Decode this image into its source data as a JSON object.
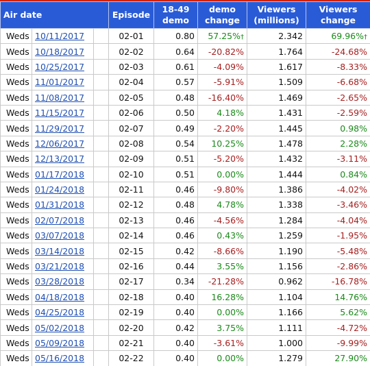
{
  "columns": {
    "air_date": "Air date",
    "episode": "Episode",
    "demo": [
      "18-49",
      "demo"
    ],
    "demo_change": [
      "demo",
      "change"
    ],
    "viewers": [
      "Viewers",
      "(millions)"
    ],
    "viewers_change": [
      "Viewers",
      "change"
    ]
  },
  "colors": {
    "header_bg": "#2a5bd7",
    "positive": "#1a8a1a",
    "negative": "#a81e1e",
    "link": "#1f4fb3",
    "top_bar": "#cc2200"
  },
  "rows": [
    {
      "day": "Weds",
      "date": "10/11/2017",
      "episode": "02-01",
      "demo": "0.80",
      "demo_change": "57.25%",
      "demo_change_mark": "†",
      "viewers": "2.342",
      "viewers_change": "69.96%",
      "viewers_change_mark": "†"
    },
    {
      "day": "Weds",
      "date": "10/18/2017",
      "episode": "02-02",
      "demo": "0.64",
      "demo_change": "-20.82%",
      "demo_change_mark": "",
      "viewers": "1.764",
      "viewers_change": "-24.68%",
      "viewers_change_mark": ""
    },
    {
      "day": "Weds",
      "date": "10/25/2017",
      "episode": "02-03",
      "demo": "0.61",
      "demo_change": "-4.09%",
      "demo_change_mark": "",
      "viewers": "1.617",
      "viewers_change": "-8.33%",
      "viewers_change_mark": ""
    },
    {
      "day": "Weds",
      "date": "11/01/2017",
      "episode": "02-04",
      "demo": "0.57",
      "demo_change": "-5.91%",
      "demo_change_mark": "",
      "viewers": "1.509",
      "viewers_change": "-6.68%",
      "viewers_change_mark": ""
    },
    {
      "day": "Weds",
      "date": "11/08/2017",
      "episode": "02-05",
      "demo": "0.48",
      "demo_change": "-16.40%",
      "demo_change_mark": "",
      "viewers": "1.469",
      "viewers_change": "-2.65%",
      "viewers_change_mark": ""
    },
    {
      "day": "Weds",
      "date": "11/15/2017",
      "episode": "02-06",
      "demo": "0.50",
      "demo_change": "4.18%",
      "demo_change_mark": "",
      "viewers": "1.431",
      "viewers_change": "-2.59%",
      "viewers_change_mark": ""
    },
    {
      "day": "Weds",
      "date": "11/29/2017",
      "episode": "02-07",
      "demo": "0.49",
      "demo_change": "-2.20%",
      "demo_change_mark": "",
      "viewers": "1.445",
      "viewers_change": "0.98%",
      "viewers_change_mark": ""
    },
    {
      "day": "Weds",
      "date": "12/06/2017",
      "episode": "02-08",
      "demo": "0.54",
      "demo_change": "10.25%",
      "demo_change_mark": "",
      "viewers": "1.478",
      "viewers_change": "2.28%",
      "viewers_change_mark": ""
    },
    {
      "day": "Weds",
      "date": "12/13/2017",
      "episode": "02-09",
      "demo": "0.51",
      "demo_change": "-5.20%",
      "demo_change_mark": "",
      "viewers": "1.432",
      "viewers_change": "-3.11%",
      "viewers_change_mark": ""
    },
    {
      "day": "Weds",
      "date": "01/17/2018",
      "episode": "02-10",
      "demo": "0.51",
      "demo_change": "0.00%",
      "demo_change_mark": "",
      "viewers": "1.444",
      "viewers_change": "0.84%",
      "viewers_change_mark": ""
    },
    {
      "day": "Weds",
      "date": "01/24/2018",
      "episode": "02-11",
      "demo": "0.46",
      "demo_change": "-9.80%",
      "demo_change_mark": "",
      "viewers": "1.386",
      "viewers_change": "-4.02%",
      "viewers_change_mark": ""
    },
    {
      "day": "Weds",
      "date": "01/31/2018",
      "episode": "02-12",
      "demo": "0.48",
      "demo_change": "4.78%",
      "demo_change_mark": "",
      "viewers": "1.338",
      "viewers_change": "-3.46%",
      "viewers_change_mark": ""
    },
    {
      "day": "Weds",
      "date": "02/07/2018",
      "episode": "02-13",
      "demo": "0.46",
      "demo_change": "-4.56%",
      "demo_change_mark": "",
      "viewers": "1.284",
      "viewers_change": "-4.04%",
      "viewers_change_mark": ""
    },
    {
      "day": "Weds",
      "date": "03/07/2018",
      "episode": "02-14",
      "demo": "0.46",
      "demo_change": "0.43%",
      "demo_change_mark": "",
      "viewers": "1.259",
      "viewers_change": "-1.95%",
      "viewers_change_mark": ""
    },
    {
      "day": "Weds",
      "date": "03/14/2018",
      "episode": "02-15",
      "demo": "0.42",
      "demo_change": "-8.66%",
      "demo_change_mark": "",
      "viewers": "1.190",
      "viewers_change": "-5.48%",
      "viewers_change_mark": ""
    },
    {
      "day": "Weds",
      "date": "03/21/2018",
      "episode": "02-16",
      "demo": "0.44",
      "demo_change": "3.55%",
      "demo_change_mark": "",
      "viewers": "1.156",
      "viewers_change": "-2.86%",
      "viewers_change_mark": ""
    },
    {
      "day": "Weds",
      "date": "03/28/2018",
      "episode": "02-17",
      "demo": "0.34",
      "demo_change": "-21.28%",
      "demo_change_mark": "",
      "viewers": "0.962",
      "viewers_change": "-16.78%",
      "viewers_change_mark": ""
    },
    {
      "day": "Weds",
      "date": "04/18/2018",
      "episode": "02-18",
      "demo": "0.40",
      "demo_change": "16.28%",
      "demo_change_mark": "",
      "viewers": "1.104",
      "viewers_change": "14.76%",
      "viewers_change_mark": ""
    },
    {
      "day": "Weds",
      "date": "04/25/2018",
      "episode": "02-19",
      "demo": "0.40",
      "demo_change": "0.00%",
      "demo_change_mark": "",
      "viewers": "1.166",
      "viewers_change": "5.62%",
      "viewers_change_mark": ""
    },
    {
      "day": "Weds",
      "date": "05/02/2018",
      "episode": "02-20",
      "demo": "0.42",
      "demo_change": "3.75%",
      "demo_change_mark": "",
      "viewers": "1.111",
      "viewers_change": "-4.72%",
      "viewers_change_mark": ""
    },
    {
      "day": "Weds",
      "date": "05/09/2018",
      "episode": "02-21",
      "demo": "0.40",
      "demo_change": "-3.61%",
      "demo_change_mark": "",
      "viewers": "1.000",
      "viewers_change": "-9.99%",
      "viewers_change_mark": ""
    },
    {
      "day": "Weds",
      "date": "05/16/2018",
      "episode": "02-22",
      "demo": "0.40",
      "demo_change": "0.00%",
      "demo_change_mark": "",
      "viewers": "1.279",
      "viewers_change": "27.90%",
      "viewers_change_mark": ""
    }
  ]
}
